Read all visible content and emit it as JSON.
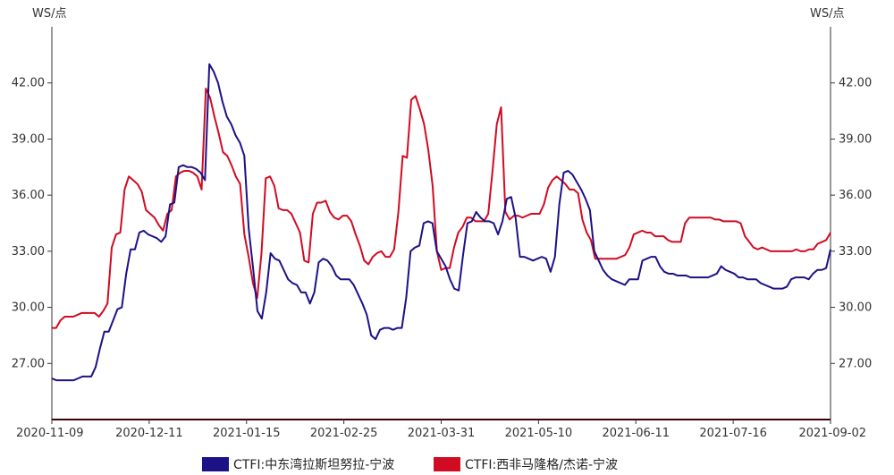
{
  "chart_data": {
    "type": "line",
    "y_unit_left": "WS/点",
    "y_unit_right": "WS/点",
    "ylim": [
      24.0,
      45.0
    ],
    "y_ticks": [
      "27.00",
      "30.00",
      "33.00",
      "36.00",
      "39.00",
      "42.00"
    ],
    "x_tick_labels": [
      "2020-11-09",
      "2020-12-11",
      "2021-01-15",
      "2021-02-25",
      "2021-03-31",
      "2021-05-10",
      "2021-06-11",
      "2021-07-16",
      "2021-09-02"
    ],
    "grid": false,
    "legend_position": "bottom",
    "series": [
      {
        "name": "CTFI:中东湾拉斯坦努拉-宁波",
        "color": "#1c1187",
        "values": [
          26.2,
          26.1,
          26.1,
          26.1,
          26.1,
          26.1,
          26.2,
          26.3,
          26.3,
          26.3,
          26.8,
          27.8,
          28.7,
          28.7,
          29.3,
          29.9,
          30.0,
          31.8,
          33.1,
          33.1,
          34.0,
          34.1,
          33.9,
          33.8,
          33.7,
          33.5,
          33.8,
          35.5,
          35.6,
          37.5,
          37.6,
          37.5,
          37.5,
          37.4,
          37.2,
          36.8,
          43.0,
          42.6,
          42.0,
          41.0,
          40.2,
          39.8,
          39.2,
          38.8,
          38.1,
          34.2,
          32.1,
          29.8,
          29.4,
          30.8,
          32.9,
          32.6,
          32.5,
          32.0,
          31.5,
          31.3,
          31.2,
          30.8,
          30.8,
          30.2,
          30.8,
          32.4,
          32.6,
          32.5,
          32.2,
          31.7,
          31.5,
          31.5,
          31.5,
          31.2,
          30.7,
          30.2,
          29.6,
          28.5,
          28.3,
          28.8,
          28.9,
          28.9,
          28.8,
          28.9,
          28.9,
          30.5,
          33.0,
          33.2,
          33.3,
          34.5,
          34.6,
          34.5,
          33.0,
          32.6,
          32.2,
          31.5,
          31.0,
          30.9,
          32.8,
          34.5,
          34.6,
          35.1,
          34.8,
          34.6,
          34.6,
          34.5,
          33.9,
          34.6,
          35.8,
          35.9,
          34.8,
          32.7,
          32.7,
          32.6,
          32.5,
          32.6,
          32.7,
          32.6,
          31.9,
          32.7,
          35.5,
          37.2,
          37.3,
          37.1,
          36.7,
          36.3,
          35.8,
          35.2,
          33.0,
          32.5,
          32.0,
          31.7,
          31.5,
          31.4,
          31.3,
          31.2,
          31.5,
          31.5,
          31.5,
          32.5,
          32.6,
          32.7,
          32.7,
          32.2,
          31.9,
          31.8,
          31.8,
          31.7,
          31.7,
          31.7,
          31.6,
          31.6,
          31.6,
          31.6,
          31.6,
          31.7,
          31.8,
          32.2,
          32.0,
          31.9,
          31.8,
          31.6,
          31.6,
          31.5,
          31.5,
          31.5,
          31.3,
          31.2,
          31.1,
          31.0,
          31.0,
          31.0,
          31.1,
          31.5,
          31.6,
          31.6,
          31.6,
          31.5,
          31.8,
          32.0,
          32.0,
          32.1,
          33.1
        ]
      },
      {
        "name": "CTFI:西非马隆格/杰诺-宁波",
        "color": "#d10b22",
        "values": [
          28.9,
          28.9,
          29.3,
          29.5,
          29.5,
          29.5,
          29.6,
          29.7,
          29.7,
          29.7,
          29.7,
          29.5,
          29.8,
          30.2,
          33.2,
          33.9,
          34.0,
          36.3,
          37.0,
          36.8,
          36.6,
          36.2,
          35.2,
          35.0,
          34.8,
          34.4,
          34.1,
          35.0,
          35.2,
          37.0,
          37.2,
          37.3,
          37.3,
          37.2,
          37.0,
          36.3,
          41.7,
          41.2,
          40.2,
          39.3,
          38.3,
          38.1,
          37.6,
          37.0,
          36.6,
          33.9,
          32.7,
          31.3,
          30.5,
          32.9,
          36.9,
          37.0,
          36.5,
          35.3,
          35.2,
          35.2,
          35.0,
          34.5,
          34.0,
          32.5,
          32.4,
          35.0,
          35.6,
          35.6,
          35.7,
          35.1,
          34.8,
          34.7,
          34.9,
          34.9,
          34.6,
          33.9,
          33.3,
          32.5,
          32.3,
          32.7,
          32.9,
          33.0,
          32.7,
          32.7,
          33.1,
          35.1,
          38.1,
          38.0,
          41.1,
          41.3,
          40.6,
          39.8,
          38.4,
          36.5,
          33.0,
          32.0,
          32.1,
          32.1,
          33.2,
          34.0,
          34.3,
          34.8,
          34.8,
          34.6,
          34.6,
          34.6,
          35.0,
          37.3,
          39.8,
          40.7,
          35.1,
          34.7,
          34.9,
          34.9,
          34.8,
          34.9,
          35.0,
          35.0,
          35.0,
          35.5,
          36.4,
          36.8,
          37.0,
          36.8,
          36.6,
          36.3,
          36.3,
          36.1,
          34.7,
          34.0,
          33.6,
          32.6,
          32.6,
          32.6,
          32.6,
          32.6,
          32.6,
          32.7,
          32.8,
          33.2,
          33.9,
          34.0,
          34.1,
          34.0,
          34.0,
          33.8,
          33.8,
          33.8,
          33.6,
          33.5,
          33.5,
          33.5,
          34.5,
          34.8,
          34.8,
          34.8,
          34.8,
          34.8,
          34.8,
          34.7,
          34.7,
          34.6,
          34.6,
          34.6,
          34.6,
          34.5,
          33.8,
          33.5,
          33.2,
          33.1,
          33.2,
          33.1,
          33.0,
          33.0,
          33.0,
          33.0,
          33.0,
          33.0,
          33.1,
          33.0,
          33.0,
          33.1,
          33.1,
          33.4,
          33.5,
          33.6,
          34.0
        ]
      }
    ]
  }
}
